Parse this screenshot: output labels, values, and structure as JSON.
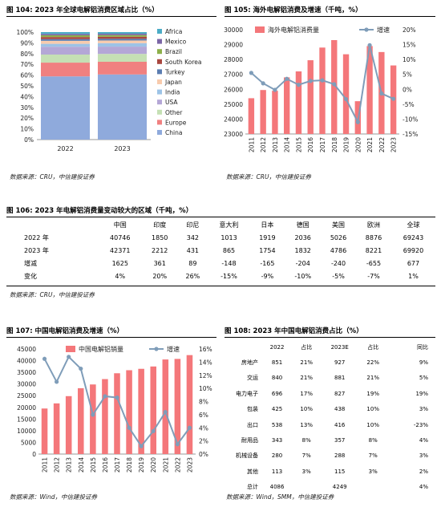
{
  "fig104": {
    "title": "图 104: 2023 年全球电解铝消费区域占比（%）",
    "source": "数据来源：CRU，中信建投证券"
  },
  "fig105": {
    "title": "图 105: 海外电解铝消费及增速（千吨，%）",
    "source": "数据来源：CRU，中信建投证券"
  },
  "fig106": {
    "title": "图 106: 2023 年电解铝消费量变动较大的区域（千吨，%）",
    "source": "数据来源：CRU，中信建投证券",
    "headers": [
      "",
      "中国",
      "印度",
      "印尼",
      "意大利",
      "日本",
      "德国",
      "美国",
      "欧洲",
      "全球"
    ],
    "rows": [
      [
        "2022 年",
        "40746",
        "1850",
        "342",
        "1013",
        "1919",
        "2036",
        "5026",
        "8876",
        "69243"
      ],
      [
        "2023 年",
        "42371",
        "2212",
        "431",
        "865",
        "1754",
        "1832",
        "4786",
        "8221",
        "69920"
      ],
      [
        "增减",
        "1625",
        "361",
        "89",
        "-148",
        "-165",
        "-204",
        "-240",
        "-655",
        "677"
      ],
      [
        "变化",
        "4%",
        "20%",
        "26%",
        "-15%",
        "-9%",
        "-10%",
        "-5%",
        "-7%",
        "1%"
      ]
    ]
  },
  "fig107": {
    "title": "图 107: 中国电解铝消费及增速（%）",
    "source": "数据来源：Wind，中信建投证券"
  },
  "fig108": {
    "title": "图 108: 2023 年中国电解铝消费占比（%）",
    "source": "数据来源：Wind，SMM，中信建投证券",
    "headers": [
      "",
      "2022",
      "占比",
      "2023E",
      "占比",
      "同比"
    ],
    "rows": [
      [
        "房地产",
        "851",
        "21%",
        "927",
        "22%",
        "9%"
      ],
      [
        "交运",
        "840",
        "21%",
        "881",
        "21%",
        "5%"
      ],
      [
        "电力电子",
        "696",
        "17%",
        "827",
        "19%",
        "19%"
      ],
      [
        "包装",
        "425",
        "10%",
        "438",
        "10%",
        "3%"
      ],
      [
        "出口",
        "538",
        "13%",
        "416",
        "10%",
        "-23%"
      ],
      [
        "耐用品",
        "343",
        "8%",
        "357",
        "8%",
        "4%"
      ],
      [
        "机械设备",
        "280",
        "7%",
        "288",
        "7%",
        "3%"
      ],
      [
        "其他",
        "113",
        "3%",
        "115",
        "3%",
        "2%"
      ],
      [
        "总计",
        "4086",
        "",
        "4249",
        "",
        "4%"
      ]
    ]
  },
  "chart_data": [
    {
      "type": "bar",
      "stacked": true,
      "categories": [
        "2022",
        "2023"
      ],
      "y_ticks": [
        "0%",
        "10%",
        "20%",
        "30%",
        "40%",
        "50%",
        "60%",
        "70%",
        "80%",
        "90%",
        "100%"
      ],
      "ylim": [
        0,
        100
      ],
      "legend_position": "right",
      "series": [
        {
          "name": "China",
          "color": "#8FAADC",
          "values": [
            58.8,
            60.6
          ]
        },
        {
          "name": "Europe",
          "color": "#F08080",
          "values": [
            12.8,
            11.8
          ]
        },
        {
          "name": "Other",
          "color": "#C5E0B4",
          "values": [
            7.5,
            7.3
          ]
        },
        {
          "name": "USA",
          "color": "#B4A7D6",
          "values": [
            7.3,
            6.8
          ]
        },
        {
          "name": "India",
          "color": "#9DC3E6",
          "values": [
            2.7,
            3.2
          ]
        },
        {
          "name": "Japan",
          "color": "#F8CBAD",
          "values": [
            2.8,
            2.5
          ]
        },
        {
          "name": "Turkey",
          "color": "#5B7DB1",
          "values": [
            1.6,
            1.6
          ]
        },
        {
          "name": "South Korea",
          "color": "#A9473F",
          "values": [
            1.9,
            1.9
          ]
        },
        {
          "name": "Brazil",
          "color": "#8DB04A",
          "values": [
            1.6,
            1.5
          ]
        },
        {
          "name": "Mexico",
          "color": "#7B66A6",
          "values": [
            1.3,
            1.3
          ]
        },
        {
          "name": "Africa",
          "color": "#4BACC6",
          "values": [
            1.7,
            1.5
          ]
        }
      ]
    },
    {
      "type": "bar",
      "categories": [
        "2011",
        "2012",
        "2013",
        "2014",
        "2015",
        "2016",
        "2017",
        "2018",
        "2019",
        "2020",
        "2021",
        "2022",
        "2023"
      ],
      "y_ticks": [
        "23000",
        "24000",
        "25000",
        "26000",
        "27000",
        "28000",
        "29000",
        "30000"
      ],
      "y2_ticks": [
        "-15%",
        "-10%",
        "-5%",
        "0%",
        "5%",
        "10%",
        "15%",
        "20%"
      ],
      "ylim": [
        23000,
        30000
      ],
      "y2lim": [
        -15,
        20
      ],
      "legend_position": "top",
      "series": [
        {
          "name": "海外电解铝消费量",
          "type": "bar",
          "color": "#F4777A",
          "values": [
            25400,
            25950,
            25900,
            26800,
            27200,
            27950,
            28800,
            29300,
            28350,
            25200,
            28900,
            28500,
            27600
          ]
        },
        {
          "name": "增速",
          "type": "line",
          "axis": "right",
          "color": "#7F9DB9",
          "values": [
            5.5,
            2.0,
            -0.2,
            3.5,
            1.5,
            2.8,
            3.0,
            1.7,
            -3.3,
            -11.0,
            14.8,
            -1.4,
            -3.2
          ]
        }
      ]
    },
    {
      "type": "bar",
      "categories": [
        "2011",
        "2012",
        "2013",
        "2014",
        "2015",
        "2016",
        "2017",
        "2018",
        "2019",
        "2020",
        "2021",
        "2022",
        "2023"
      ],
      "y_ticks": [
        "0",
        "5000",
        "10000",
        "15000",
        "20000",
        "25000",
        "30000",
        "35000",
        "40000",
        "45000"
      ],
      "y2_ticks": [
        "0%",
        "2%",
        "4%",
        "6%",
        "8%",
        "10%",
        "12%",
        "14%",
        "16%"
      ],
      "ylim": [
        0,
        45000
      ],
      "y2lim": [
        0,
        16
      ],
      "legend_position": "top",
      "series": [
        {
          "name": "中国电解铝销量",
          "type": "bar",
          "color": "#F4777A",
          "values": [
            19500,
            21700,
            24800,
            28200,
            29800,
            32100,
            34600,
            35900,
            36500,
            37500,
            40500,
            40746,
            42371
          ]
        },
        {
          "name": "增速",
          "type": "line",
          "axis": "right",
          "color": "#7F9DB9",
          "values": [
            14.5,
            11.0,
            14.8,
            13.0,
            6.0,
            8.8,
            8.6,
            4.0,
            1.2,
            3.5,
            6.4,
            1.5,
            4.0
          ]
        }
      ]
    }
  ]
}
